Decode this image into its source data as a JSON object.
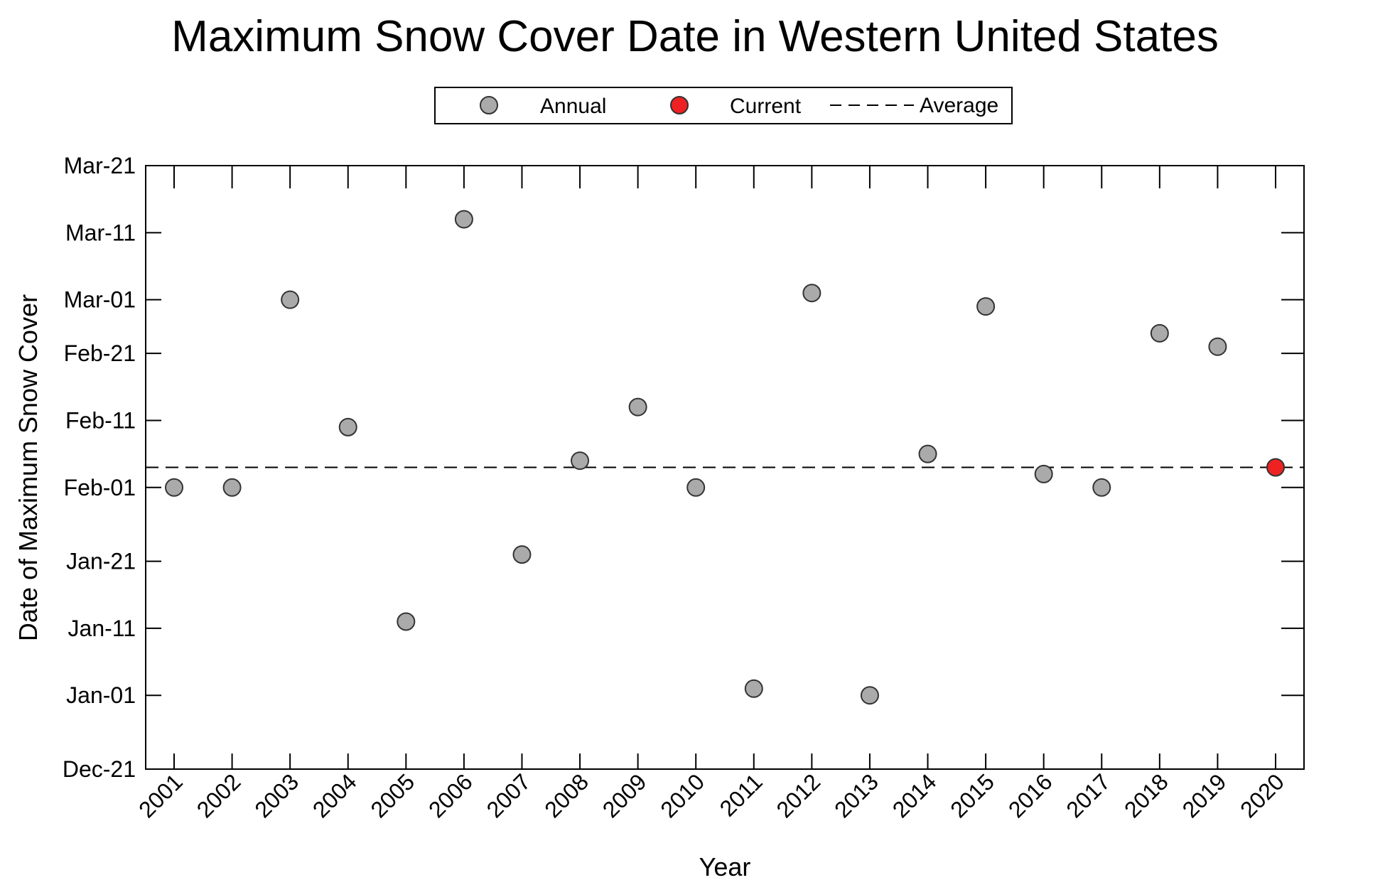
{
  "chart_data": {
    "type": "scatter",
    "title": "Maximum Snow Cover Date in Western United States",
    "xlabel": "Year",
    "ylabel": "Date of Maximum Snow Cover",
    "x_categories": [
      "2001",
      "2002",
      "2003",
      "2004",
      "2005",
      "2006",
      "2007",
      "2008",
      "2009",
      "2010",
      "2011",
      "2012",
      "2013",
      "2014",
      "2015",
      "2016",
      "2017",
      "2018",
      "2019",
      "2020"
    ],
    "y_ticks": [
      "Dec-21",
      "Jan-01",
      "Jan-11",
      "Jan-21",
      "Feb-01",
      "Feb-11",
      "Feb-21",
      "Mar-01",
      "Mar-11",
      "Mar-21"
    ],
    "y_range": [
      "Dec-21",
      "Mar-21"
    ],
    "legend": {
      "position": "top-center",
      "entries": [
        {
          "label": "Annual",
          "marker": "circle",
          "color": "#aaaaaa"
        },
        {
          "label": "Current",
          "marker": "circle",
          "color": "#ee2222"
        },
        {
          "label": "Average",
          "marker": "dashed-line",
          "color": "#000000"
        }
      ]
    },
    "series": [
      {
        "name": "Annual",
        "color": "#aaaaaa",
        "points": [
          {
            "x": "2001",
            "y": "Feb-01"
          },
          {
            "x": "2002",
            "y": "Feb-01"
          },
          {
            "x": "2003",
            "y": "Mar-01"
          },
          {
            "x": "2004",
            "y": "Feb-10"
          },
          {
            "x": "2005",
            "y": "Jan-12"
          },
          {
            "x": "2006",
            "y": "Mar-13"
          },
          {
            "x": "2007",
            "y": "Jan-22"
          },
          {
            "x": "2008",
            "y": "Feb-05"
          },
          {
            "x": "2009",
            "y": "Feb-13"
          },
          {
            "x": "2010",
            "y": "Feb-01"
          },
          {
            "x": "2011",
            "y": "Jan-02"
          },
          {
            "x": "2012",
            "y": "Mar-02"
          },
          {
            "x": "2013",
            "y": "Jan-01"
          },
          {
            "x": "2014",
            "y": "Feb-06"
          },
          {
            "x": "2015",
            "y": "Feb-28"
          },
          {
            "x": "2016",
            "y": "Feb-03"
          },
          {
            "x": "2017",
            "y": "Feb-01"
          },
          {
            "x": "2018",
            "y": "Feb-24"
          },
          {
            "x": "2019",
            "y": "Feb-22"
          }
        ]
      },
      {
        "name": "Current",
        "color": "#ee2222",
        "points": [
          {
            "x": "2020",
            "y": "Feb-04"
          }
        ]
      },
      {
        "name": "Average",
        "style": "dashed",
        "color": "#000000",
        "y": "Feb-04"
      }
    ],
    "grid": false
  }
}
